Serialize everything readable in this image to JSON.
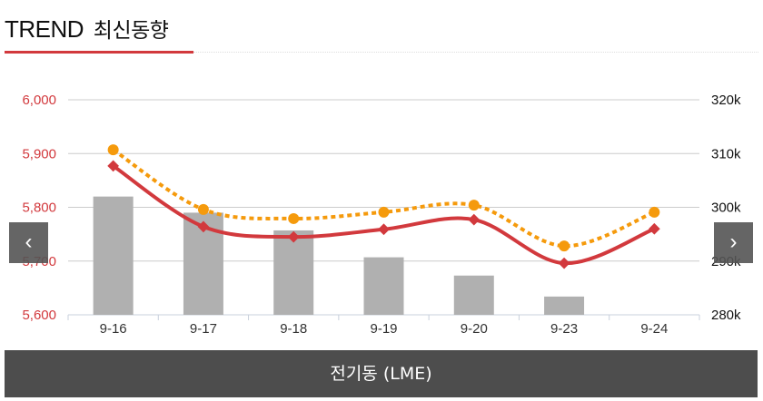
{
  "header": {
    "title_en": "TREND",
    "title_ko": "최신동향"
  },
  "nav": {
    "prev": "‹",
    "next": "›"
  },
  "footer": {
    "label": "전기동 (LME)"
  },
  "colors": {
    "accent": "#d2393d",
    "orange": "#f59a0c",
    "bar": "#b0b0b0"
  },
  "chart_data": {
    "type": "bar+line",
    "categories": [
      "9-16",
      "9-17",
      "9-18",
      "9-19",
      "9-20",
      "9-23",
      "9-24"
    ],
    "left_axis": {
      "ticks": [
        "5,600",
        "5,700",
        "5,800",
        "5,900",
        "6,000"
      ],
      "range": [
        5600,
        6000
      ]
    },
    "right_axis": {
      "ticks": [
        "280k",
        "290k",
        "300k",
        "310k",
        "320k"
      ],
      "range": [
        280,
        320
      ]
    },
    "series": [
      {
        "name": "bars",
        "axis": "right",
        "type": "bar",
        "values": [
          302,
          299,
          295.7,
          290.7,
          287.3,
          283.4,
          280
        ]
      },
      {
        "name": "red-line",
        "axis": "left",
        "type": "line",
        "values": [
          5877,
          5764,
          5745,
          5759,
          5777,
          5696,
          5760
        ]
      },
      {
        "name": "orange-dotted",
        "axis": "left",
        "type": "line",
        "values": [
          5907,
          5796,
          5779,
          5791,
          5804,
          5728,
          5791
        ]
      }
    ],
    "grid": true
  }
}
